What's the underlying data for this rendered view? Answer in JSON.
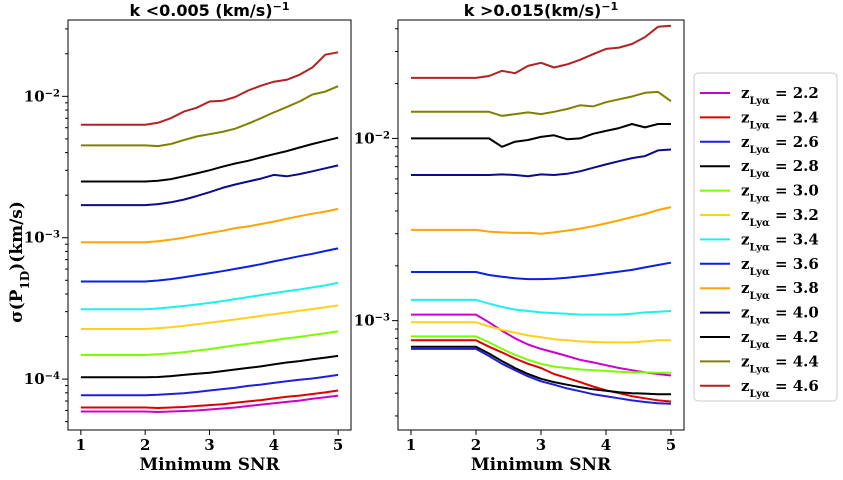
{
  "chart_data": {
    "type": "line",
    "x": [
      1,
      1.2,
      1.4,
      1.6,
      1.8,
      2.0,
      2.2,
      2.4,
      2.6,
      2.8,
      3.0,
      3.2,
      3.4,
      3.6,
      3.8,
      4.0,
      4.2,
      4.4,
      4.6,
      4.8,
      5.0
    ],
    "xlabel": "Minimum SNR",
    "ylabel": "σ(P_1D)(km/s)",
    "xticks": [
      "1",
      "2",
      "3",
      "4",
      "5"
    ],
    "series_labels": [
      "z_Lyα = 2.2",
      "z_Lyα = 2.4",
      "z_Lyα = 2.6",
      "z_Lyα = 2.8",
      "z_Lyα = 3.0",
      "z_Lyα = 3.2",
      "z_Lyα = 3.4",
      "z_Lyα = 3.6",
      "z_Lyα = 3.8",
      "z_Lyα = 4.0",
      "z_Lyα = 4.2",
      "z_Lyα = 4.4",
      "z_Lyα = 4.6"
    ],
    "colors": [
      "#cc00cc",
      "#dd0000",
      "#1f1fdc",
      "#000000",
      "#7cfc00",
      "#ffd21a",
      "#1ef0f0",
      "#0a21e0",
      "#ffa500",
      "#0b0b8b",
      "#000000",
      "#808000",
      "#b22222"
    ],
    "panels": [
      {
        "title_html": "k &lt;0.005 (km/s)<tspan baseline-shift='super' font-size='11'>−1</tspan>",
        "title": "k <0.005 (km/s)^-1",
        "ylog_range": [
          -4.36,
          -1.46
        ],
        "ytick_labels": [
          "10⁻²",
          "10⁻³",
          "10⁻⁴"
        ],
        "ytick_exponents": [
          -2,
          -3,
          -4
        ],
        "series": [
          {
            "name": "z=2.2",
            "values": [
              5.9e-05,
              5.9e-05,
              5.9e-05,
              5.9e-05,
              5.9e-05,
              5.9e-05,
              5.85e-05,
              5.9e-05,
              5.95e-05,
              6e-05,
              6.1e-05,
              6.2e-05,
              6.3e-05,
              6.45e-05,
              6.6e-05,
              6.75e-05,
              6.9e-05,
              7.05e-05,
              7.25e-05,
              7.45e-05,
              7.65e-05
            ]
          },
          {
            "name": "z=2.4",
            "values": [
              6.3e-05,
              6.3e-05,
              6.3e-05,
              6.3e-05,
              6.3e-05,
              6.3e-05,
              6.25e-05,
              6.3e-05,
              6.35e-05,
              6.45e-05,
              6.55e-05,
              6.65e-05,
              6.8e-05,
              6.95e-05,
              7.1e-05,
              7.3e-05,
              7.5e-05,
              7.65e-05,
              7.85e-05,
              8.05e-05,
              8.3e-05
            ]
          },
          {
            "name": "z=2.6",
            "values": [
              7.7e-05,
              7.7e-05,
              7.7e-05,
              7.7e-05,
              7.7e-05,
              7.7e-05,
              7.75e-05,
              7.85e-05,
              7.95e-05,
              8.1e-05,
              8.3e-05,
              8.5e-05,
              8.7e-05,
              8.95e-05,
              9.15e-05,
              9.4e-05,
              9.65e-05,
              9.9e-05,
              0.000101,
              0.000104,
              0.000107
            ]
          },
          {
            "name": "z=2.8",
            "values": [
              0.000103,
              0.000103,
              0.000103,
              0.000103,
              0.000103,
              0.000103,
              0.0001035,
              0.000105,
              0.000107,
              0.000109,
              0.000111,
              0.000114,
              0.000117,
              0.00012,
              0.000123,
              0.000127,
              0.000131,
              0.000134,
              0.000138,
              0.000142,
              0.000146
            ]
          },
          {
            "name": "z=3.0",
            "values": [
              0.000148,
              0.000148,
              0.000148,
              0.000148,
              0.000148,
              0.000148,
              0.00015,
              0.000152,
              0.000155,
              0.000159,
              0.000163,
              0.000168,
              0.000173,
              0.000178,
              0.000183,
              0.000188,
              0.000194,
              0.000199,
              0.000205,
              0.000211,
              0.000218
            ]
          },
          {
            "name": "z=3.2",
            "values": [
              0.000226,
              0.000226,
              0.000226,
              0.000226,
              0.000226,
              0.000226,
              0.000229,
              0.000233,
              0.000238,
              0.000244,
              0.00025,
              0.000257,
              0.000264,
              0.000272,
              0.00028,
              0.000288,
              0.000296,
              0.000304,
              0.000313,
              0.000322,
              0.000332
            ]
          },
          {
            "name": "z=3.4",
            "values": [
              0.000312,
              0.000312,
              0.000312,
              0.000312,
              0.000312,
              0.000312,
              0.000316,
              0.000322,
              0.000329,
              0.000337,
              0.000346,
              0.000356,
              0.000368,
              0.00038,
              0.000393,
              0.000406,
              0.000418,
              0.00043,
              0.000445,
              0.00046,
              0.00048
            ]
          },
          {
            "name": "z=3.6",
            "values": [
              0.00049,
              0.00049,
              0.00049,
              0.00049,
              0.00049,
              0.00049,
              0.000498,
              0.00051,
              0.000525,
              0.000542,
              0.00056,
              0.00058,
              0.000602,
              0.000625,
              0.00065,
              0.00068,
              0.00071,
              0.00074,
              0.00077,
              0.000805,
              0.00084
            ]
          },
          {
            "name": "z=3.8",
            "values": [
              0.00093,
              0.00093,
              0.00093,
              0.00093,
              0.00093,
              0.00093,
              0.000945,
              0.00097,
              0.001,
              0.00104,
              0.00108,
              0.00112,
              0.00117,
              0.0012,
              0.00125,
              0.0013,
              0.00136,
              0.00142,
              0.00148,
              0.00153,
              0.0016
            ]
          },
          {
            "name": "z=4.0",
            "values": [
              0.0017,
              0.0017,
              0.0017,
              0.0017,
              0.0017,
              0.0017,
              0.00173,
              0.00178,
              0.00186,
              0.00197,
              0.0021,
              0.00225,
              0.00238,
              0.0025,
              0.00262,
              0.00278,
              0.00272,
              0.00282,
              0.00295,
              0.0031,
              0.00325
            ]
          },
          {
            "name": "z=4.2",
            "values": [
              0.0025,
              0.0025,
              0.0025,
              0.0025,
              0.0025,
              0.0025,
              0.00253,
              0.0026,
              0.00272,
              0.00285,
              0.003,
              0.00318,
              0.00335,
              0.0035,
              0.0037,
              0.0039,
              0.0041,
              0.00435,
              0.0046,
              0.00485,
              0.0051
            ]
          },
          {
            "name": "z=4.4",
            "values": [
              0.0045,
              0.0045,
              0.0045,
              0.0045,
              0.0045,
              0.0045,
              0.00445,
              0.0046,
              0.0049,
              0.0052,
              0.0054,
              0.0056,
              0.0059,
              0.0064,
              0.007,
              0.0077,
              0.0084,
              0.0092,
              0.0103,
              0.0108,
              0.0118
            ]
          },
          {
            "name": "z=4.6",
            "values": [
              0.0063,
              0.0063,
              0.0063,
              0.0063,
              0.0063,
              0.0063,
              0.0065,
              0.007,
              0.0078,
              0.0083,
              0.0092,
              0.0093,
              0.0099,
              0.011,
              0.0119,
              0.0127,
              0.0131,
              0.0142,
              0.016,
              0.0197,
              0.0205
            ]
          }
        ]
      },
      {
        "title_html": "k &gt;0.015(km/s)<tspan baseline-shift='super' font-size='11'>−1</tspan>",
        "title": "k >0.015(km/s)^-1",
        "ylog_range": [
          -3.6,
          -1.35
        ],
        "ytick_labels": [
          "10⁻²",
          "10⁻³"
        ],
        "ytick_exponents": [
          -2,
          -3
        ],
        "series": [
          {
            "name": "z=2.2",
            "values": [
              0.00108,
              0.00108,
              0.00108,
              0.00108,
              0.00108,
              0.00108,
              0.00098,
              0.00088,
              0.0008,
              0.00074,
              0.0007,
              0.00067,
              0.00064,
              0.00061,
              0.00059,
              0.00057,
              0.00055,
              0.000535,
              0.00052,
              0.00051,
              0.0005
            ]
          },
          {
            "name": "z=2.4",
            "values": [
              0.00078,
              0.00078,
              0.00078,
              0.00078,
              0.00078,
              0.00078,
              0.00072,
              0.00067,
              0.00062,
              0.00058,
              0.00055,
              0.00051,
              0.000485,
              0.00046,
              0.000435,
              0.000415,
              0.0004,
              0.000385,
              0.000375,
              0.000365,
              0.00036
            ]
          },
          {
            "name": "z=2.6",
            "values": [
              0.0007,
              0.0007,
              0.0007,
              0.0007,
              0.0007,
              0.0007,
              0.00064,
              0.00058,
              0.000535,
              0.000495,
              0.000465,
              0.000445,
              0.000425,
              0.00041,
              0.000395,
              0.000385,
              0.000375,
              0.000365,
              0.000358,
              0.000352,
              0.00035
            ]
          },
          {
            "name": "z=2.8",
            "values": [
              0.00072,
              0.00072,
              0.00072,
              0.00072,
              0.00072,
              0.00072,
              0.00066,
              0.0006,
              0.00055,
              0.00051,
              0.00048,
              0.00046,
              0.000445,
              0.000432,
              0.00042,
              0.000412,
              0.000405,
              0.0004,
              0.000398,
              0.000395,
              0.000395
            ]
          },
          {
            "name": "z=3.0",
            "values": [
              0.00082,
              0.00082,
              0.00082,
              0.00082,
              0.00082,
              0.00082,
              0.00076,
              0.0007,
              0.00065,
              0.00061,
              0.00058,
              0.00056,
              0.00055,
              0.00054,
              0.000535,
              0.00053,
              0.000525,
              0.00052,
              0.00052,
              0.000518,
              0.000518
            ]
          },
          {
            "name": "z=3.2",
            "values": [
              0.00098,
              0.00098,
              0.00098,
              0.00098,
              0.00098,
              0.00098,
              0.00093,
              0.00089,
              0.00086,
              0.00083,
              0.00081,
              0.00079,
              0.00078,
              0.00077,
              0.000765,
              0.00076,
              0.00076,
              0.00076,
              0.00077,
              0.00078,
              0.00078
            ]
          },
          {
            "name": "z=3.4",
            "values": [
              0.0013,
              0.0013,
              0.0013,
              0.0013,
              0.0013,
              0.0013,
              0.00124,
              0.00119,
              0.00115,
              0.00113,
              0.00111,
              0.0011,
              0.00109,
              0.00108,
              0.00108,
              0.00108,
              0.00108,
              0.00109,
              0.00111,
              0.00112,
              0.00113
            ]
          },
          {
            "name": "z=3.6",
            "values": [
              0.00185,
              0.00185,
              0.00185,
              0.00185,
              0.00185,
              0.00185,
              0.00178,
              0.00174,
              0.00171,
              0.00169,
              0.00169,
              0.0017,
              0.00172,
              0.00175,
              0.00178,
              0.00182,
              0.00186,
              0.0019,
              0.00196,
              0.00202,
              0.00208
            ]
          },
          {
            "name": "z=3.8",
            "values": [
              0.00315,
              0.00315,
              0.00315,
              0.00315,
              0.00315,
              0.00315,
              0.00308,
              0.00305,
              0.00303,
              0.00304,
              0.003,
              0.00305,
              0.00312,
              0.0032,
              0.0033,
              0.00342,
              0.00355,
              0.0037,
              0.00385,
              0.00405,
              0.0042
            ]
          },
          {
            "name": "z=4.0",
            "values": [
              0.0063,
              0.0063,
              0.0063,
              0.0063,
              0.0063,
              0.0063,
              0.0063,
              0.00635,
              0.0063,
              0.0062,
              0.00635,
              0.0063,
              0.0064,
              0.0066,
              0.0069,
              0.0072,
              0.0075,
              0.0078,
              0.008,
              0.0086,
              0.0087
            ]
          },
          {
            "name": "z=4.2",
            "values": [
              0.01,
              0.01,
              0.01,
              0.01,
              0.01,
              0.01,
              0.01,
              0.009,
              0.0096,
              0.0098,
              0.0102,
              0.0104,
              0.0099,
              0.01,
              0.0106,
              0.011,
              0.0114,
              0.012,
              0.0115,
              0.012,
              0.012
            ]
          },
          {
            "name": "z=4.4",
            "values": [
              0.014,
              0.014,
              0.014,
              0.014,
              0.014,
              0.014,
              0.014,
              0.0133,
              0.0136,
              0.0139,
              0.0136,
              0.014,
              0.0145,
              0.0152,
              0.015,
              0.0158,
              0.0164,
              0.017,
              0.0178,
              0.018,
              0.016
            ]
          },
          {
            "name": "z=4.6",
            "values": [
              0.0215,
              0.0215,
              0.0215,
              0.0215,
              0.0215,
              0.0215,
              0.022,
              0.0235,
              0.0228,
              0.025,
              0.026,
              0.0245,
              0.0255,
              0.027,
              0.029,
              0.031,
              0.0315,
              0.033,
              0.036,
              0.041,
              0.0415
            ]
          }
        ]
      }
    ]
  }
}
